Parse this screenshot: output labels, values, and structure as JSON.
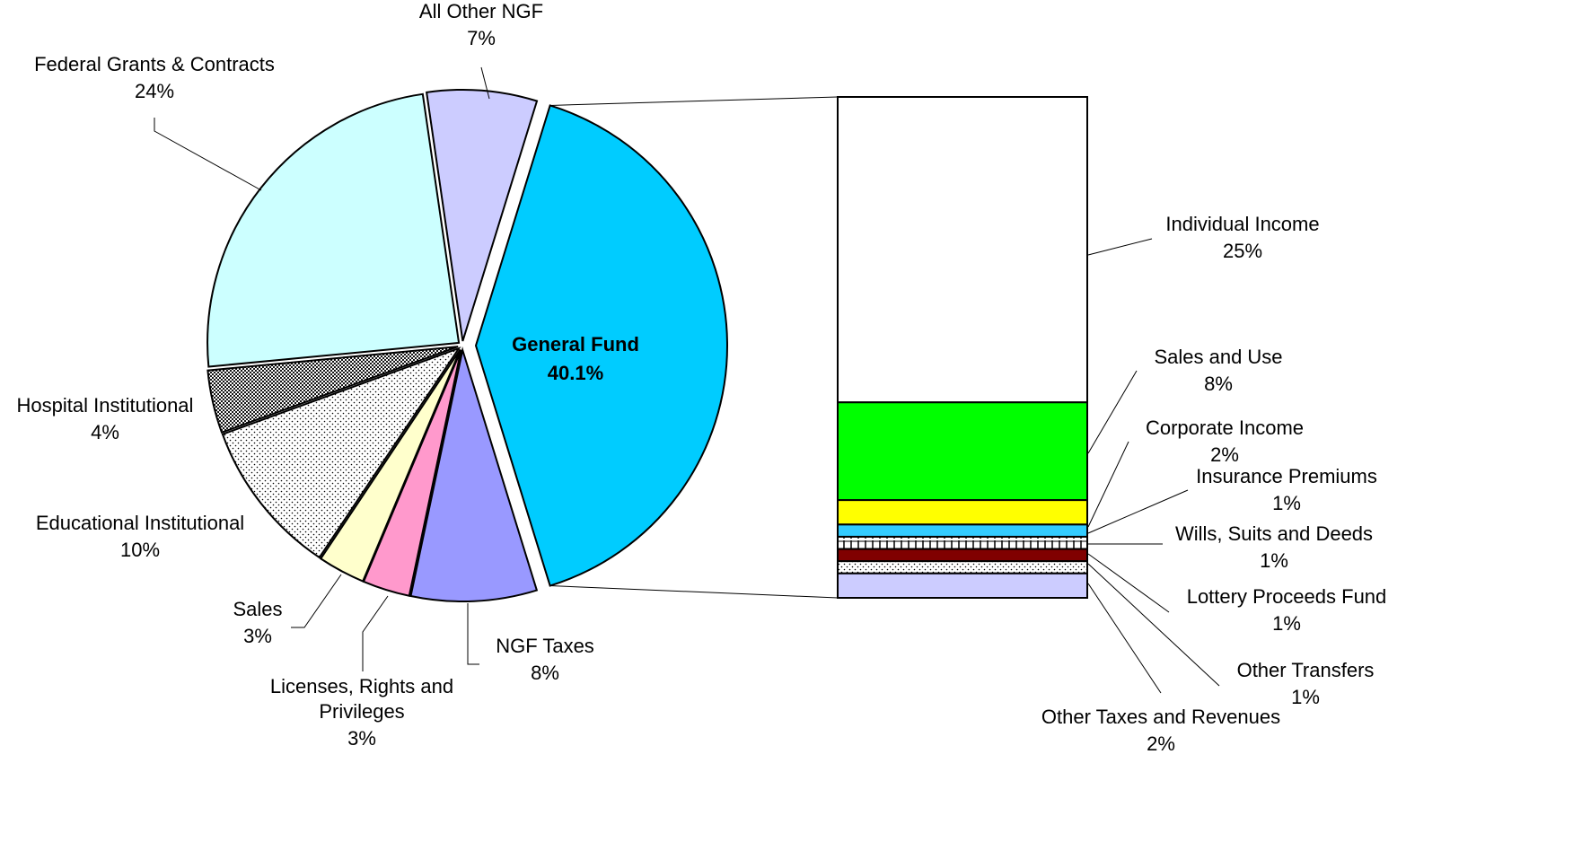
{
  "chart_data": {
    "type": "bar-of-pie",
    "pie": {
      "slices": [
        {
          "name": "General Fund",
          "value": 40.1,
          "label_value": "40.1%",
          "color": "#00ccff",
          "pattern": "solid",
          "exploded": true
        },
        {
          "name": "NGF Taxes",
          "value": 8,
          "label_value": "8%",
          "color": "#9999ff",
          "pattern": "solid"
        },
        {
          "name": "Licenses, Rights and Privileges",
          "value": 3,
          "label_value": "3%",
          "color": "#ff99cc",
          "pattern": "solid"
        },
        {
          "name": "Sales",
          "value": 3,
          "label_value": "3%",
          "color": "#ffffcc",
          "pattern": "solid"
        },
        {
          "name": "Educational Institutional",
          "value": 10,
          "label_value": "10%",
          "color": "#ffffff",
          "pattern": "light-dots"
        },
        {
          "name": "Hospital Institutional",
          "value": 4,
          "label_value": "4%",
          "color": "#ffffff",
          "pattern": "dense-dots"
        },
        {
          "name": "Federal Grants & Contracts",
          "value": 24,
          "label_value": "24%",
          "color": "#ccffff",
          "pattern": "solid"
        },
        {
          "name": "All Other NGF",
          "value": 7,
          "label_value": "7%",
          "color": "#ccccff",
          "pattern": "solid"
        }
      ]
    },
    "bar": {
      "segments": [
        {
          "name": "Individual Income",
          "value": 25,
          "label_value": "25%",
          "color": "#ffffff",
          "pattern": "solid"
        },
        {
          "name": "Sales and Use",
          "value": 8,
          "label_value": "8%",
          "color": "#00ff00",
          "pattern": "solid"
        },
        {
          "name": "Corporate Income",
          "value": 2,
          "label_value": "2%",
          "color": "#ffff00",
          "pattern": "solid"
        },
        {
          "name": "Insurance Premiums",
          "value": 1,
          "label_value": "1%",
          "color": "#33ccff",
          "pattern": "solid"
        },
        {
          "name": "Wills, Suits and Deeds",
          "value": 1,
          "label_value": "1%",
          "color": "#ffffff",
          "pattern": "ticks"
        },
        {
          "name": "Lottery Proceeds Fund",
          "value": 1,
          "label_value": "1%",
          "color": "#800000",
          "pattern": "solid"
        },
        {
          "name": "Other Transfers",
          "value": 1,
          "label_value": "1%",
          "color": "#ffffff",
          "pattern": "light-dots"
        },
        {
          "name": "Other Taxes and Revenues",
          "value": 2,
          "label_value": "2%",
          "color": "#ccccff",
          "pattern": "solid"
        }
      ]
    }
  }
}
